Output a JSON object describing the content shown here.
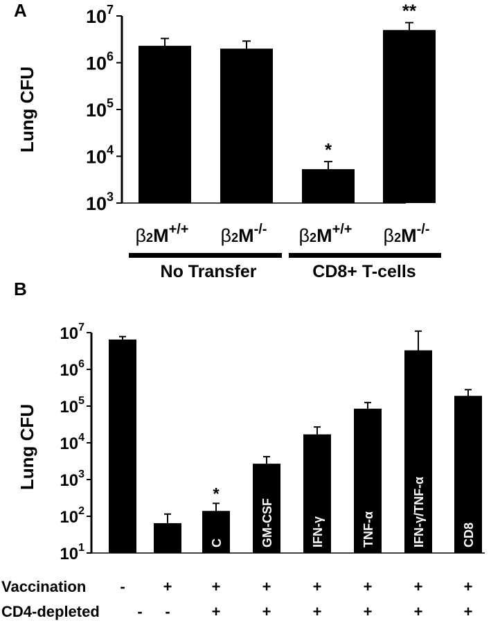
{
  "chart_data": [
    {
      "panel": "A",
      "type": "bar",
      "ylabel": "Lung CFU",
      "yscale": "log",
      "ylim": [
        1000,
        10000000
      ],
      "yticks": [
        {
          "base": "10",
          "exp": "3"
        },
        {
          "base": "10",
          "exp": "4"
        },
        {
          "base": "10",
          "exp": "5"
        },
        {
          "base": "10",
          "exp": "6"
        },
        {
          "base": "10",
          "exp": "7"
        }
      ],
      "categories": [
        {
          "beta": "β",
          "sub": "2",
          "main": "M",
          "sup": "+/+"
        },
        {
          "beta": "β",
          "sub": "2",
          "main": "M",
          "sup": "-/-"
        },
        {
          "beta": "β",
          "sub": "2",
          "main": "M",
          "sup": "+/+"
        },
        {
          "beta": "β",
          "sub": "2",
          "main": "M",
          "sup": "-/-"
        }
      ],
      "values": [
        2300000,
        2000000,
        5300,
        5000000
      ],
      "error_upper": [
        3300000,
        2900000,
        7700,
        7200000
      ],
      "annotations": [
        "",
        "",
        "*",
        "**"
      ],
      "groups": [
        {
          "label": "No Transfer",
          "from": 0,
          "to": 1
        },
        {
          "label": "CD8+ T-cells",
          "from": 2,
          "to": 3
        }
      ],
      "grid": false,
      "legend": "none"
    },
    {
      "panel": "B",
      "type": "bar",
      "ylabel": "Lung CFU",
      "yscale": "log",
      "ylim": [
        10,
        10000000
      ],
      "yticks": [
        {
          "base": "10",
          "exp": "1"
        },
        {
          "base": "10",
          "exp": "2"
        },
        {
          "base": "10",
          "exp": "3"
        },
        {
          "base": "10",
          "exp": "4"
        },
        {
          "base": "10",
          "exp": "5"
        },
        {
          "base": "10",
          "exp": "6"
        },
        {
          "base": "10",
          "exp": "7"
        }
      ],
      "bar_labels": [
        "",
        "",
        "C",
        "GM-CSF",
        "IFN-γ",
        "TNF-α",
        "IFN-γ/TNF-α",
        "CD8"
      ],
      "values": [
        6500000,
        65,
        140,
        2700,
        17000,
        85000,
        3300000,
        190000
      ],
      "error_upper": [
        7800000,
        115,
        225,
        4200,
        27000,
        125000,
        11000000,
        280000
      ],
      "annotations": [
        "",
        "",
        "*",
        "",
        "",
        "",
        "",
        ""
      ],
      "rows": [
        {
          "label": "Vaccination",
          "values": [
            "-",
            "+",
            "+",
            "+",
            "+",
            "+",
            "+",
            "+"
          ]
        },
        {
          "label": "CD4-depleted",
          "values": [
            "-",
            "-",
            "+",
            "+",
            "+",
            "+",
            "+",
            "+"
          ]
        }
      ],
      "grid": false,
      "legend": "none"
    }
  ],
  "panel_letters": [
    "A",
    "B"
  ]
}
